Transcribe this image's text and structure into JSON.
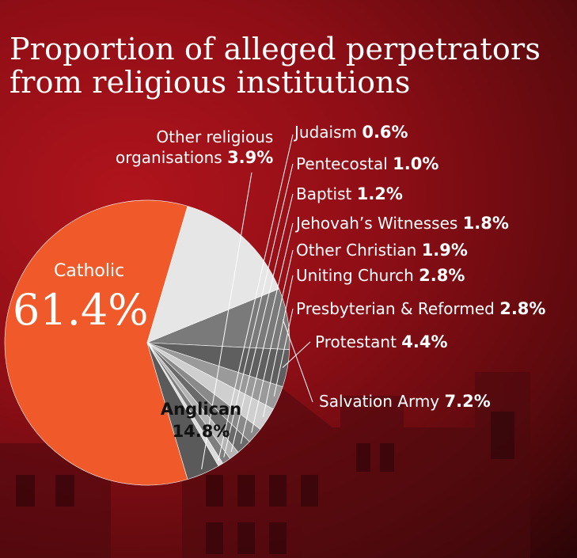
{
  "header": {
    "title_line1": "Proportion of alleged perpetrators",
    "title_line2": "from religious institutions"
  },
  "colors": {
    "catholic": "#f05a2b",
    "anglican": "#e6e6e6",
    "dark_grey": "#6a6a6a",
    "mid_grey": "#8c8c8c",
    "light_grey": "#b8b8b8",
    "text": "#ffffff"
  },
  "chart_data": {
    "type": "pie",
    "title": "Proportion of alleged perpetrators from religious institutions",
    "unit": "%",
    "slices": [
      {
        "label": "Catholic",
        "value": 61.4,
        "display": "61.4%",
        "color": "#f05a2b"
      },
      {
        "label": "Anglican",
        "value": 14.8,
        "display": "14.8%",
        "color": "#e6e6e6"
      },
      {
        "label": "Salvation Army",
        "value": 7.2,
        "display": "7.2%",
        "color": "#7a7a7a"
      },
      {
        "label": "Protestant",
        "value": 4.4,
        "display": "4.4%",
        "color": "#5f5f5f"
      },
      {
        "label": "Presbyterian & Reformed",
        "value": 2.8,
        "display": "2.8%",
        "color": "#9a9a9a"
      },
      {
        "label": "Uniting Church",
        "value": 2.8,
        "display": "2.8%",
        "color": "#cfcfcf"
      },
      {
        "label": "Other Christian",
        "value": 1.9,
        "display": "1.9%",
        "color": "#8a8a8a"
      },
      {
        "label": "Jehovah’s Witnesses",
        "value": 1.8,
        "display": "1.8%",
        "color": "#6a6a6a"
      },
      {
        "label": "Baptist",
        "value": 1.2,
        "display": "1.2%",
        "color": "#b4b4b4"
      },
      {
        "label": "Pentecostal",
        "value": 1.0,
        "display": "1.0%",
        "color": "#7e7e7e"
      },
      {
        "label": "Judaism",
        "value": 0.6,
        "display": "0.6%",
        "color": "#dcdcdc"
      },
      {
        "label": "Other religious organisations",
        "value": 3.9,
        "display": "3.9%",
        "color": "#5a5a5a"
      }
    ]
  },
  "labels": {
    "catholic_name": "Catholic",
    "catholic_value": "61.4%",
    "anglican_name": "Anglican",
    "anglican_value": "14.8%",
    "other_religious_line1": "Other religious",
    "other_religious_line2": "organisations",
    "other_religious_value": "3.9%",
    "judaism": "Judaism",
    "judaism_value": "0.6%",
    "pentecostal": "Pentecostal",
    "pentecostal_value": "1.0%",
    "baptist": "Baptist",
    "baptist_value": "1.2%",
    "jehovah": "Jehovah’s Witnesses",
    "jehovah_value": "1.8%",
    "other_christian": "Other Christian",
    "other_christian_value": "1.9%",
    "uniting": "Uniting Church",
    "uniting_value": "2.8%",
    "presbyterian": "Presbyterian & Reformed",
    "presbyterian_value": "2.8%",
    "protestant": "Protestant",
    "protestant_value": "4.4%",
    "salvation": "Salvation Army",
    "salvation_value": "7.2%"
  }
}
